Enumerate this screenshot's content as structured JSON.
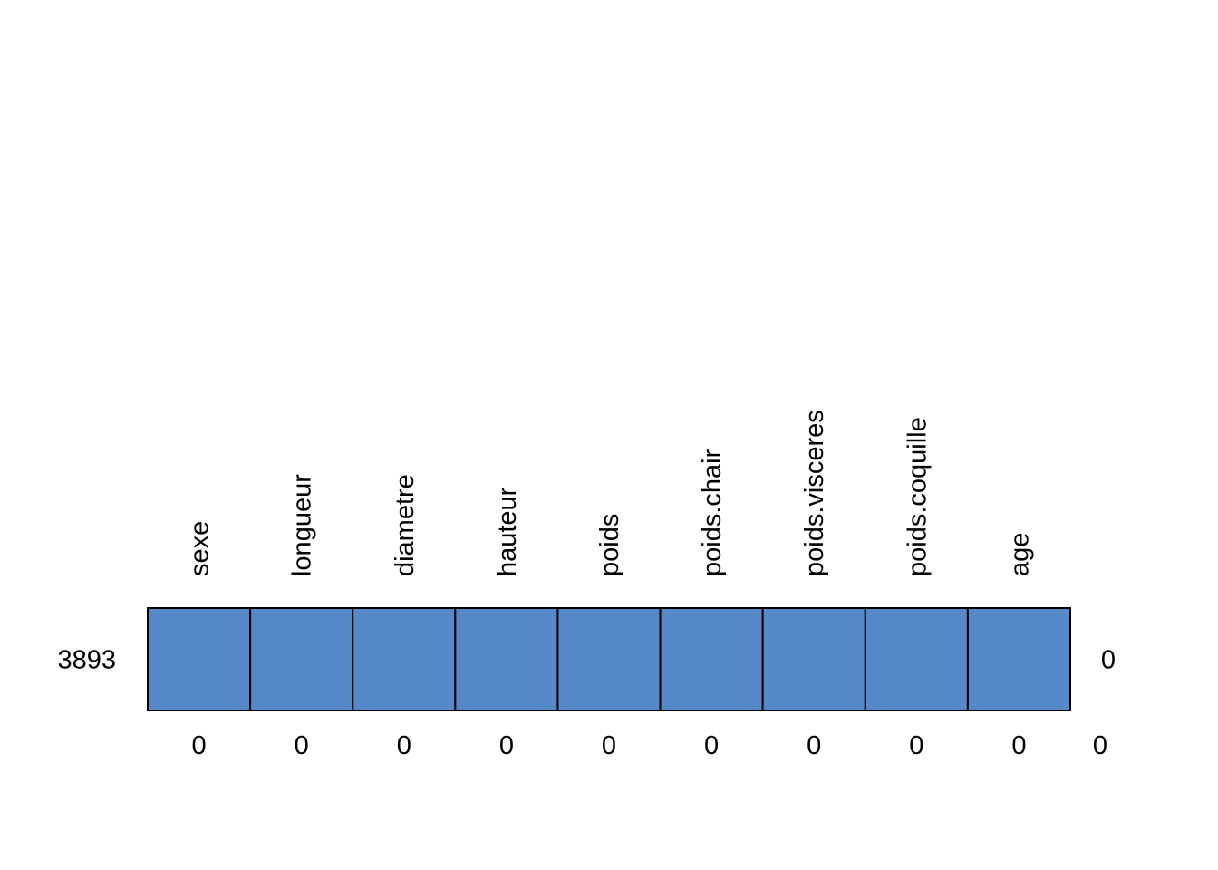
{
  "chart_data": {
    "type": "heatmap",
    "title": "",
    "variables": [
      "sexe",
      "longueur",
      "diametre",
      "hauteur",
      "poids",
      "poids.chair",
      "poids.visceres",
      "poids.coquille",
      "age"
    ],
    "rows": [
      {
        "count": "3893",
        "pattern": [
          1,
          1,
          1,
          1,
          1,
          1,
          1,
          1,
          1
        ],
        "missing_in_row": "0"
      }
    ],
    "missing_per_variable": [
      "0",
      "0",
      "0",
      "0",
      "0",
      "0",
      "0",
      "0",
      "0"
    ],
    "total_missing": "0",
    "colors": {
      "observed": "#5589c9",
      "missing": "#cc6677",
      "border": "#000000",
      "text": "#000000"
    }
  }
}
